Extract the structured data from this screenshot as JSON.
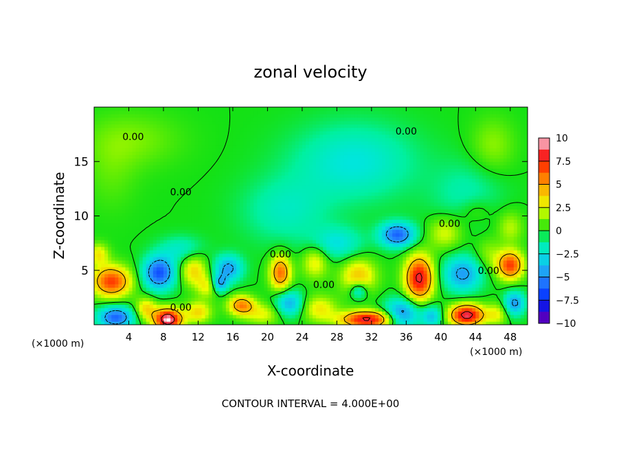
{
  "chart_data": {
    "type": "heatmap",
    "title": "zonal velocity",
    "xlabel": "X-coordinate",
    "ylabel": "Z-coordinate",
    "x_unit_left": "(×1000 m)",
    "x_unit_right": "(×1000 m)",
    "footer": "CONTOUR INTERVAL = 4.000E+00",
    "xlim": [
      0,
      50
    ],
    "ylim": [
      0,
      20
    ],
    "x_ticks": [
      4,
      8,
      12,
      16,
      20,
      24,
      28,
      32,
      36,
      40,
      44,
      48
    ],
    "y_ticks": [
      5,
      10,
      15
    ],
    "colorbar_ticks": [
      "10",
      "7.5",
      "5",
      "2.5",
      "0",
      "−2.5",
      "−5",
      "−7.5",
      "−10"
    ],
    "colorbar_range": [
      -10,
      10
    ],
    "contour_labels": [
      {
        "text": "0.00",
        "x": 4.5,
        "y": 17.3
      },
      {
        "text": "0.00",
        "x": 36.0,
        "y": 17.8
      },
      {
        "text": "0.00",
        "x": 10.0,
        "y": 12.2
      },
      {
        "text": "0.00",
        "x": 41.0,
        "y": 9.3
      },
      {
        "text": "0.00",
        "x": 21.5,
        "y": 6.5
      },
      {
        "text": "0.00",
        "x": 45.5,
        "y": 5.0
      },
      {
        "text": "0.00",
        "x": 26.5,
        "y": 3.7
      },
      {
        "text": "0.00",
        "x": 10.0,
        "y": 1.6
      }
    ],
    "features": [
      {
        "x": 4.5,
        "y": 17.0,
        "v": 1.2,
        "sx": 5.5,
        "sy": 2.5
      },
      {
        "x": 2.0,
        "y": 14.0,
        "v": 0.8,
        "sx": 3.0,
        "sy": 3.5
      },
      {
        "x": 30.0,
        "y": 15.0,
        "v": -2.5,
        "sx": 7.0,
        "sy": 3.5
      },
      {
        "x": 22.0,
        "y": 10.5,
        "v": -1.8,
        "sx": 5.0,
        "sy": 3.0
      },
      {
        "x": 46.0,
        "y": 16.5,
        "v": 1.5,
        "sx": 2.5,
        "sy": 2.5
      },
      {
        "x": 43.0,
        "y": 12.0,
        "v": -1.5,
        "sx": 4.0,
        "sy": 3.0
      },
      {
        "x": 35.0,
        "y": 8.3,
        "v": -6.0,
        "sx": 2.0,
        "sy": 1.1
      },
      {
        "x": 40.5,
        "y": 8.5,
        "v": 2.5,
        "sx": 2.0,
        "sy": 1.5
      },
      {
        "x": 44.0,
        "y": 10.5,
        "v": 1.2,
        "sx": 2.0,
        "sy": 1.2
      },
      {
        "x": 48.0,
        "y": 9.0,
        "v": 2.0,
        "sx": 1.5,
        "sy": 1.5
      },
      {
        "x": 2.0,
        "y": 4.0,
        "v": 7.0,
        "sx": 2.2,
        "sy": 1.4
      },
      {
        "x": 0.5,
        "y": 6.5,
        "v": 3.0,
        "sx": 1.2,
        "sy": 1.0
      },
      {
        "x": 7.5,
        "y": 4.8,
        "v": -6.5,
        "sx": 1.8,
        "sy": 1.5
      },
      {
        "x": 11.5,
        "y": 5.0,
        "v": 3.5,
        "sx": 1.5,
        "sy": 1.4
      },
      {
        "x": 13.0,
        "y": 3.5,
        "v": 2.5,
        "sx": 1.2,
        "sy": 1.0
      },
      {
        "x": 15.5,
        "y": 5.2,
        "v": -4.5,
        "sx": 1.6,
        "sy": 1.2
      },
      {
        "x": 14.5,
        "y": 3.8,
        "v": -4.0,
        "sx": 0.9,
        "sy": 0.8
      },
      {
        "x": 17.0,
        "y": 1.8,
        "v": 5.5,
        "sx": 1.5,
        "sy": 0.9
      },
      {
        "x": 21.5,
        "y": 4.8,
        "v": 6.0,
        "sx": 1.2,
        "sy": 1.6
      },
      {
        "x": 22.5,
        "y": 2.0,
        "v": -4.0,
        "sx": 1.6,
        "sy": 1.2
      },
      {
        "x": 25.5,
        "y": 5.8,
        "v": 3.0,
        "sx": 1.5,
        "sy": 1.5
      },
      {
        "x": 30.5,
        "y": 4.5,
        "v": 4.0,
        "sx": 2.0,
        "sy": 1.6
      },
      {
        "x": 30.5,
        "y": 3.2,
        "v": -3.5,
        "sx": 1.0,
        "sy": 0.8
      },
      {
        "x": 31.5,
        "y": 0.5,
        "v": 8.5,
        "sx": 3.0,
        "sy": 0.8
      },
      {
        "x": 37.5,
        "y": 4.3,
        "v": 8.5,
        "sx": 1.6,
        "sy": 2.0
      },
      {
        "x": 35.5,
        "y": 1.0,
        "v": -5.0,
        "sx": 2.0,
        "sy": 1.4
      },
      {
        "x": 39.0,
        "y": 0.8,
        "v": -3.5,
        "sx": 1.2,
        "sy": 1.0
      },
      {
        "x": 42.5,
        "y": 4.7,
        "v": -4.5,
        "sx": 2.2,
        "sy": 1.6
      },
      {
        "x": 43.0,
        "y": 0.9,
        "v": 9.0,
        "sx": 2.0,
        "sy": 1.0
      },
      {
        "x": 45.5,
        "y": 6.5,
        "v": 1.5,
        "sx": 1.5,
        "sy": 1.5
      },
      {
        "x": 48.0,
        "y": 5.5,
        "v": 7.0,
        "sx": 1.5,
        "sy": 1.3
      },
      {
        "x": 48.5,
        "y": 2.0,
        "v": -4.5,
        "sx": 1.2,
        "sy": 1.1
      },
      {
        "x": 8.5,
        "y": 0.5,
        "v": 10.0,
        "sx": 1.6,
        "sy": 1.0
      },
      {
        "x": 2.5,
        "y": 0.7,
        "v": -6.0,
        "sx": 2.0,
        "sy": 1.0
      },
      {
        "x": 6.0,
        "y": 1.5,
        "v": 3.5,
        "sx": 1.2,
        "sy": 1.0
      },
      {
        "x": 12.0,
        "y": 1.2,
        "v": 3.5,
        "sx": 1.5,
        "sy": 1.0
      },
      {
        "x": 19.5,
        "y": 1.0,
        "v": 2.5,
        "sx": 2.0,
        "sy": 1.0
      },
      {
        "x": 26.0,
        "y": 1.5,
        "v": 3.0,
        "sx": 2.0,
        "sy": 1.2
      },
      {
        "x": 46.5,
        "y": 1.0,
        "v": 2.5,
        "sx": 1.2,
        "sy": 1.0
      },
      {
        "x": 10.0,
        "y": 7.0,
        "v": -2.0,
        "sx": 2.5,
        "sy": 1.2
      },
      {
        "x": 28.0,
        "y": 7.5,
        "v": -2.5,
        "sx": 3.0,
        "sy": 1.5
      }
    ]
  }
}
